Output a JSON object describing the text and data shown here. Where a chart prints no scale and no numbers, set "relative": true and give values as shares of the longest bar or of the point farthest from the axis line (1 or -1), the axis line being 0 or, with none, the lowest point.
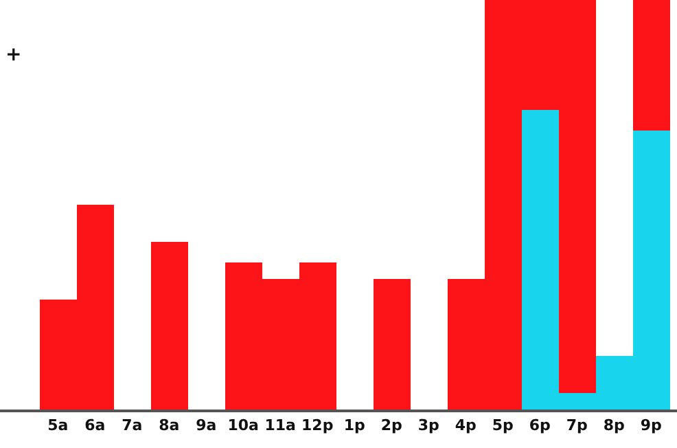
{
  "chart_data": {
    "type": "bar",
    "relative": true,
    "stacked": true,
    "categories": [
      "5a",
      "6a",
      "7a",
      "8a",
      "9a",
      "10a",
      "11a",
      "12p",
      "1p",
      "2p",
      "3p",
      "4p",
      "5p",
      "6p",
      "7p",
      "8p",
      "9p"
    ],
    "series": [
      {
        "color": "#18d4ec",
        "values": [
          null,
          null,
          null,
          null,
          null,
          null,
          null,
          null,
          null,
          null,
          null,
          null,
          null,
          0.73,
          0.04,
          0.13,
          0.68
        ]
      },
      {
        "color": "#fc1419",
        "values": [
          0.27,
          0.5,
          null,
          0.41,
          null,
          0.36,
          0.32,
          0.36,
          null,
          0.32,
          null,
          0.32,
          1,
          0.27,
          0.96,
          null,
          0.32
        ]
      }
    ],
    "annotations": [
      "+"
    ]
  }
}
